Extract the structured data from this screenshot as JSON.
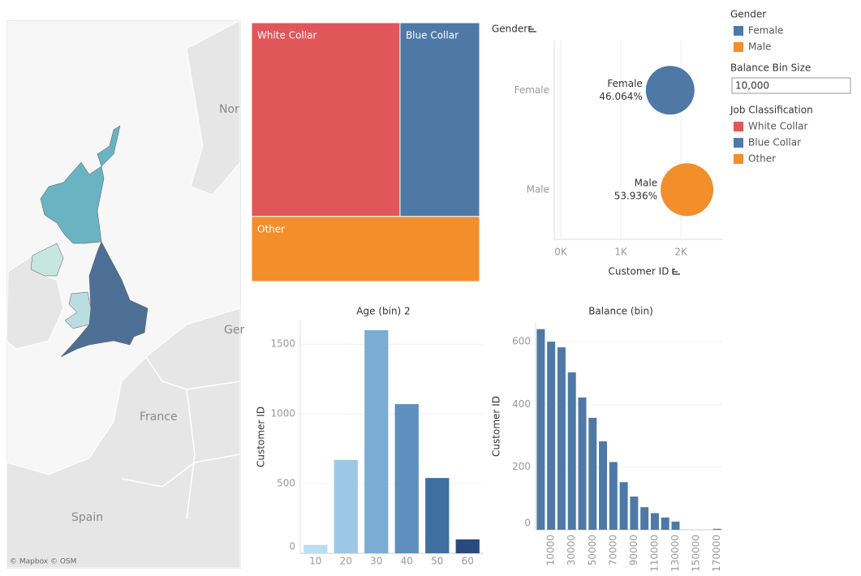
{
  "map": {
    "labels": [
      "Nor",
      "Ger",
      "France",
      "Spain"
    ],
    "attribution": "© Mapbox © OSM"
  },
  "parameter": {
    "label": "Balance Bin Size",
    "value": "10,000"
  },
  "legends": {
    "job_title": "Job Classification"
  },
  "chart_data": [
    {
      "type": "treemap",
      "categories": [
        "White Collar",
        "Blue Collar",
        "Other"
      ],
      "values": [
        1950,
        1045,
        1005
      ],
      "colors": [
        "#e15759",
        "#4e79a7",
        "#f28e2b"
      ]
    },
    {
      "type": "bubble",
      "y_label": "Gender",
      "x_label": "Customer ID",
      "categories": [
        "Female",
        "Male"
      ],
      "x": [
        1820,
        2100
      ],
      "values": [
        46.064,
        53.936
      ],
      "value_labels": [
        "46.064%",
        "53.936%"
      ],
      "colors": [
        "#4e79a7",
        "#f28e2b"
      ],
      "xlim": [
        0,
        2700
      ],
      "xticks": [
        {
          "value": 0,
          "label": "0K"
        },
        {
          "value": 1000,
          "label": "1K"
        },
        {
          "value": 2000,
          "label": "2K"
        }
      ],
      "grid": true
    },
    {
      "type": "bar",
      "title": "Age (bin) 2",
      "y_label": "Customer ID",
      "categories": [
        "10",
        "20",
        "30",
        "40",
        "50",
        "60"
      ],
      "values": [
        60,
        670,
        1600,
        1070,
        540,
        100
      ],
      "colors": [
        "#b9ddf1",
        "#9cc8e5",
        "#7bacd4",
        "#5e8fbf",
        "#3f6f9f",
        "#2a4a7f"
      ],
      "ylim": [
        0,
        1670
      ],
      "yticks": [
        0,
        500,
        1000,
        1500
      ]
    },
    {
      "type": "bar",
      "title": "Balance (bin)",
      "y_label": "Customer ID",
      "categories": [
        null,
        "10000",
        null,
        "30000",
        null,
        "50000",
        null,
        "70000",
        null,
        "90000",
        null,
        "110000",
        null,
        "130000",
        null,
        "150000",
        null,
        "170000"
      ],
      "values": [
        640,
        600,
        582,
        502,
        422,
        357,
        282,
        216,
        152,
        106,
        72,
        53,
        39,
        26,
        0,
        0,
        0,
        3
      ],
      "color": "#4e79a7",
      "ylim": [
        0,
        660
      ],
      "yticks": [
        0,
        200,
        400,
        600
      ]
    }
  ]
}
